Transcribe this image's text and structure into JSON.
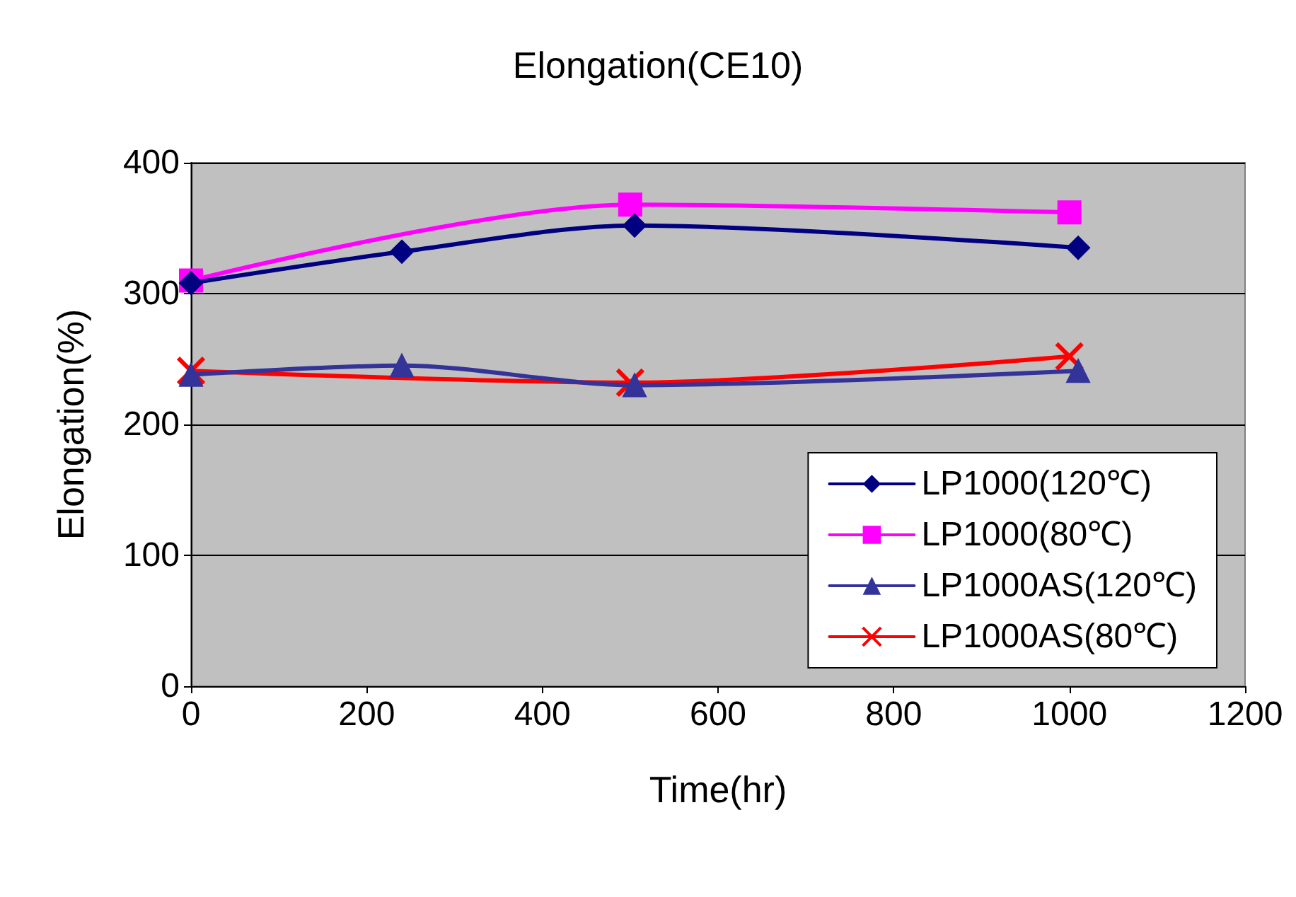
{
  "chart_data": {
    "type": "line",
    "title": "Elongation(CE10)",
    "xlabel": "Time(hr)",
    "ylabel": "Elongation(%)",
    "xlim": [
      0,
      1200
    ],
    "xticks": [
      0,
      200,
      400,
      600,
      800,
      1000,
      1200
    ],
    "ylim": [
      0,
      400
    ],
    "yticks": [
      0,
      100,
      200,
      300,
      400
    ],
    "grid": "y",
    "legend": "bottom right",
    "line_style": "solid",
    "series": [
      {
        "name": "LP1000(120℃)",
        "color": "#000080",
        "marker": "diamond",
        "x": [
          0,
          240,
          505,
          1010
        ],
        "values": [
          308,
          332,
          352,
          335
        ]
      },
      {
        "name": "LP1000(80℃)",
        "color": "#ff00ff",
        "marker": "square",
        "x": [
          0,
          500,
          1000
        ],
        "values": [
          310,
          368,
          362
        ]
      },
      {
        "name": "LP1000AS(120℃)",
        "color": "#333399",
        "marker": "triangle",
        "x": [
          0,
          240,
          505,
          1010
        ],
        "values": [
          238,
          245,
          230,
          241
        ]
      },
      {
        "name": "LP1000AS(80℃)",
        "color": "#ff0000",
        "marker": "cross",
        "x": [
          0,
          500,
          1000
        ],
        "values": [
          241,
          232,
          252
        ]
      }
    ]
  }
}
